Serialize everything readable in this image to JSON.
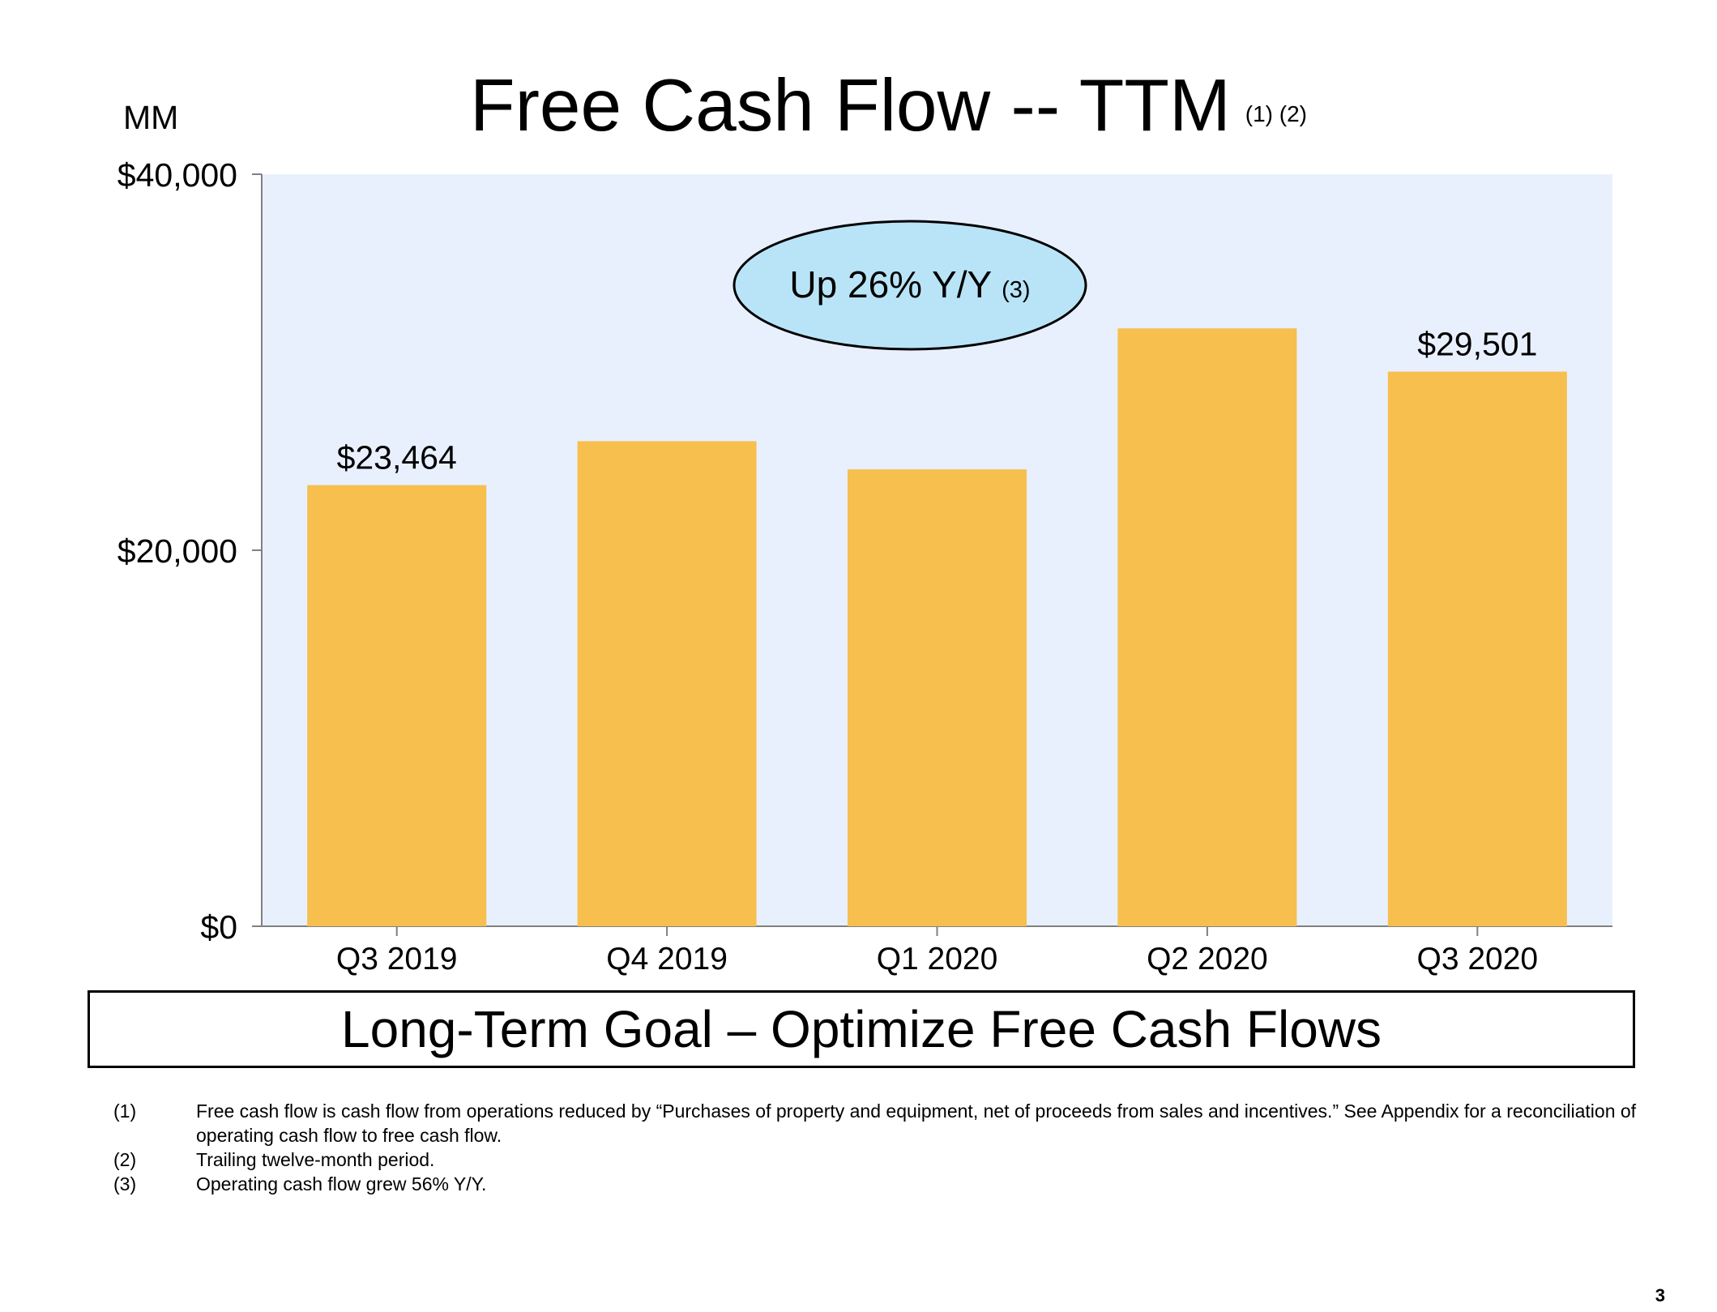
{
  "colors": {
    "plot_background": "#e9f0fd",
    "bar": "#f7bf4e",
    "callout_fill": "#b9e4f7",
    "axis": "#808080"
  },
  "slide": {
    "title": "Free Cash Flow -- TTM",
    "title_footnotes": "(1) (2)",
    "unit_label": "MM",
    "callout": {
      "text": "Up 26% Y/Y",
      "footnote": "(3)"
    },
    "goal": "Long-Term Goal – Optimize Free Cash Flows",
    "footnotes": [
      {
        "num": "(1)",
        "text": "Free cash flow is cash flow from operations reduced by “Purchases of property and equipment, net of proceeds from sales and incentives.” See Appendix for a reconciliation of operating cash flow to free cash flow."
      },
      {
        "num": "(2)",
        "text": "Trailing twelve-month period."
      },
      {
        "num": "(3)",
        "text": "Operating cash flow grew 56% Y/Y."
      }
    ],
    "page_number": "3"
  },
  "chart_data": {
    "type": "bar",
    "title": "Free Cash Flow -- TTM",
    "ylabel": "MM",
    "categories": [
      "Q3 2019",
      "Q4 2019",
      "Q1 2020",
      "Q2 2020",
      "Q3 2020"
    ],
    "values": [
      23464,
      25800,
      24300,
      31800,
      29501
    ],
    "data_labels": [
      "$23,464",
      "",
      "",
      "",
      "$29,501"
    ],
    "ylim": [
      0,
      40000
    ],
    "yticks": [
      0,
      20000,
      40000
    ],
    "ytick_labels": [
      "$0",
      "$20,000",
      "$40,000"
    ],
    "grid": false,
    "legend": "none"
  }
}
